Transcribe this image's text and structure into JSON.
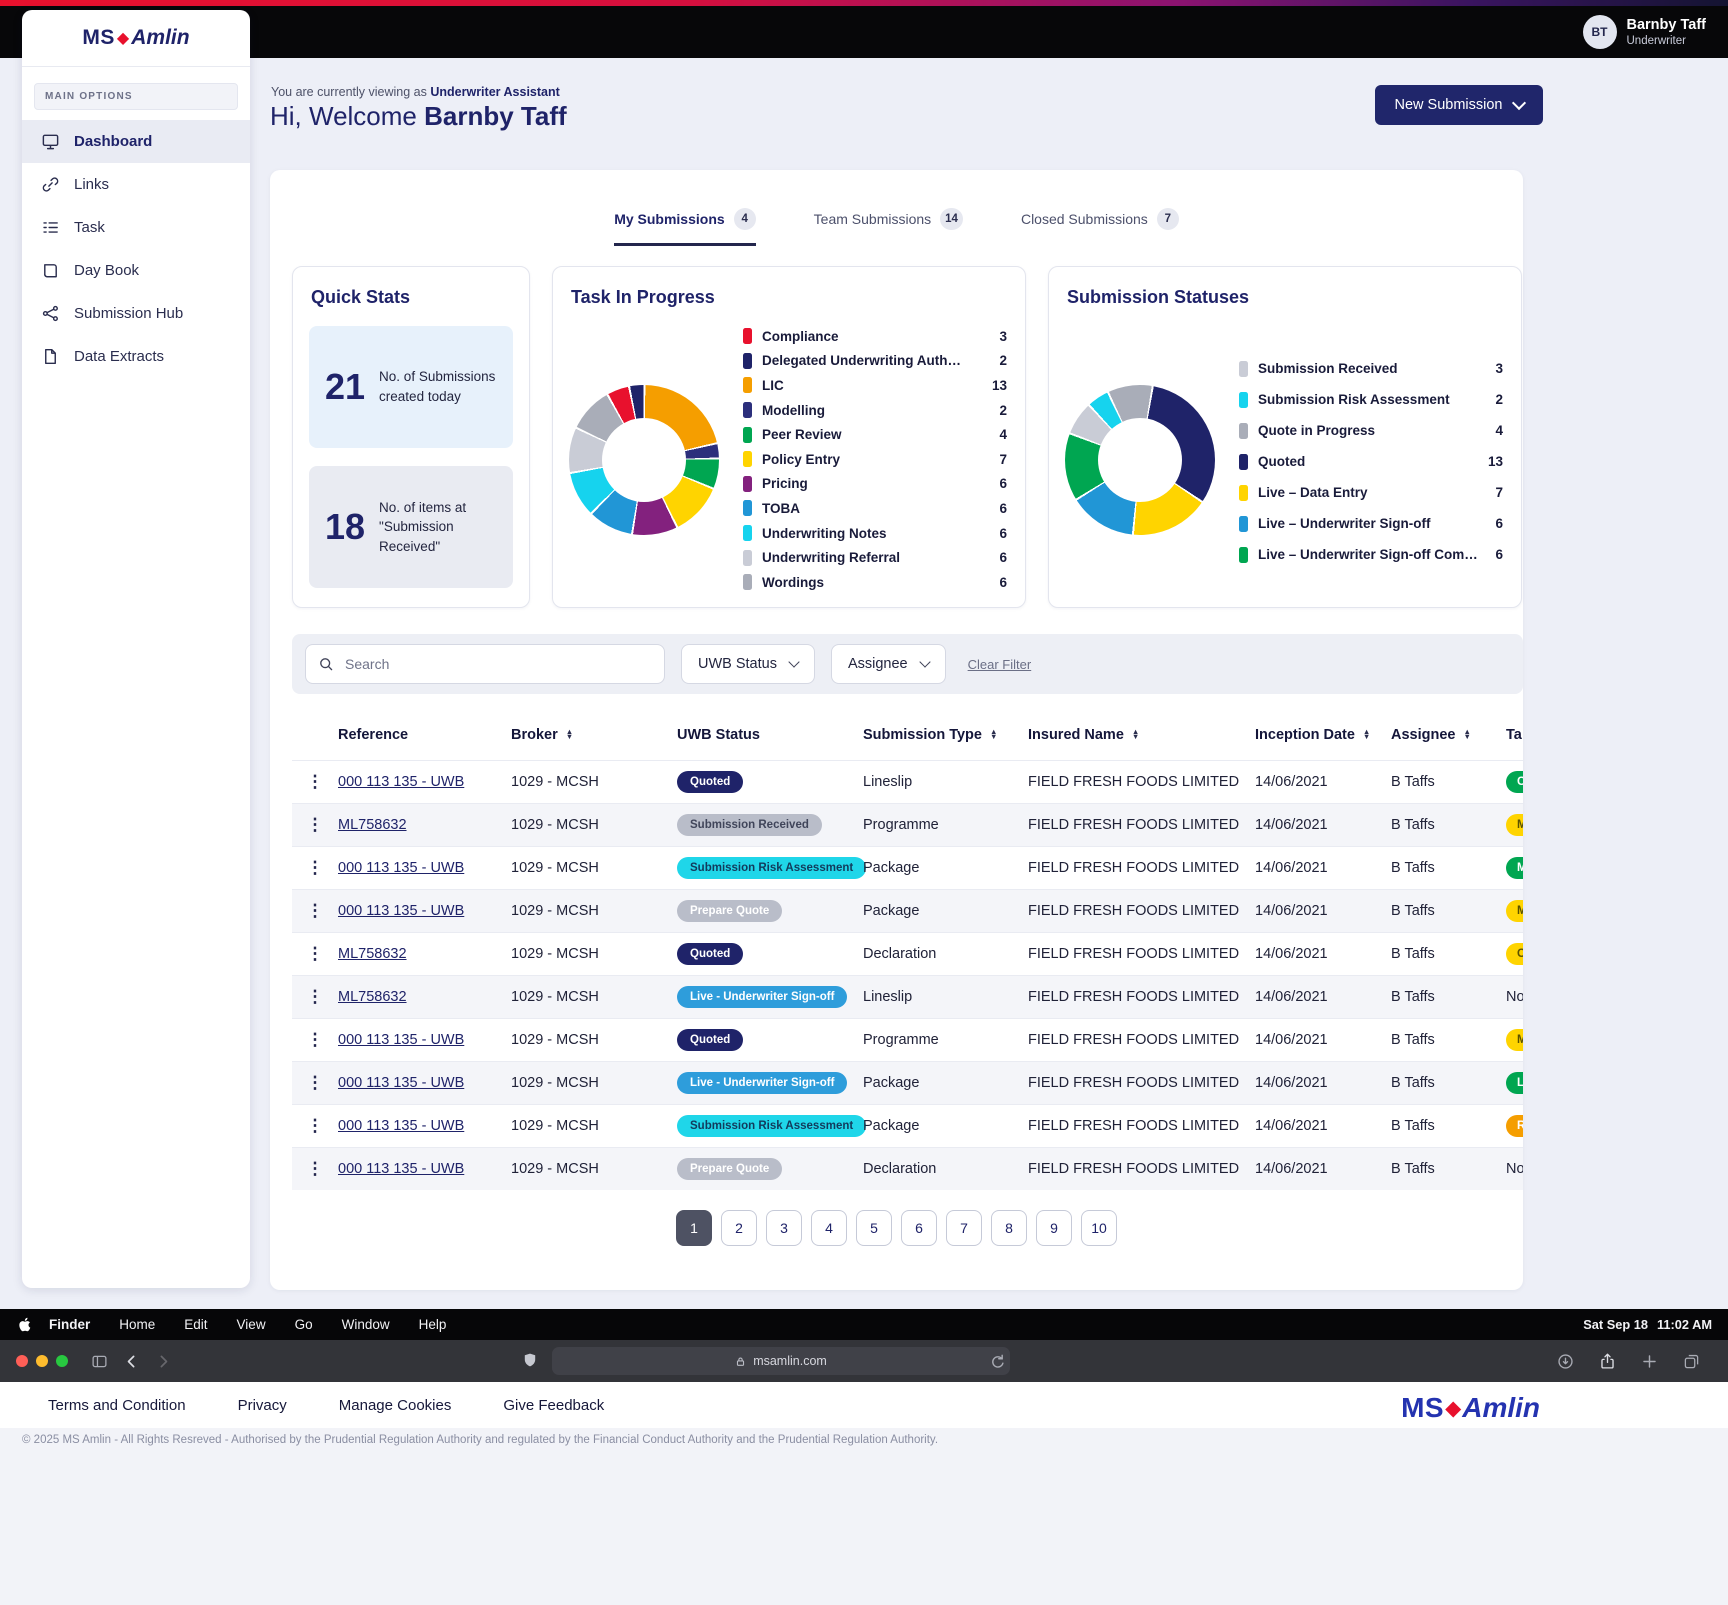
{
  "brand": {
    "ms": "MS",
    "diamond": "◆",
    "amlin": "Amlin",
    "accent_red": "#e8112d",
    "navy": "#1f2369"
  },
  "header": {
    "initials": "BT",
    "name": "Barnby Taff",
    "role": "Underwriter"
  },
  "sidebar": {
    "section_label": "MAIN OPTIONS",
    "items": [
      {
        "label": "Dashboard",
        "icon": "monitor-icon",
        "active": true
      },
      {
        "label": "Links",
        "icon": "link-icon",
        "active": false
      },
      {
        "label": "Task",
        "icon": "task-icon",
        "active": false
      },
      {
        "label": "Day Book",
        "icon": "book-icon",
        "active": false
      },
      {
        "label": "Submission Hub",
        "icon": "hub-icon",
        "active": false
      },
      {
        "label": "Data Extracts",
        "icon": "document-icon",
        "active": false
      }
    ]
  },
  "page": {
    "viewing_prefix": "You are currently viewing as",
    "viewing_role": "Underwriter Assistant",
    "welcome_prefix": "Hi, Welcome",
    "welcome_name": "Barnby Taff",
    "new_submission": "New Submission"
  },
  "tabs": [
    {
      "label": "My Submissions",
      "count": 4,
      "active": true
    },
    {
      "label": "Team Submissions",
      "count": 14,
      "active": false
    },
    {
      "label": "Closed Submissions",
      "count": 7,
      "active": false
    }
  ],
  "quick_stats": {
    "title": "Quick Stats",
    "items": [
      {
        "value": "21",
        "label": "No. of Submissions created today",
        "bg": "#e7f1fb"
      },
      {
        "value": "18",
        "label": "No. of items at \"Submission Received\"",
        "bg": "#e9ebf2"
      }
    ]
  },
  "chart_data": [
    {
      "type": "pie",
      "variant": "donut",
      "title": "Task In Progress",
      "legend_position": "right",
      "start_deg": -30,
      "segments": [
        {
          "label": "Compliance",
          "value": 3,
          "color": "#e8112d"
        },
        {
          "label": "Delegated Underwriting Auth…",
          "value": 2,
          "color": "#1f2369"
        },
        {
          "label": "LIC",
          "value": 13,
          "color": "#f59e00"
        },
        {
          "label": "Modelling",
          "value": 2,
          "color": "#2c2f7c"
        },
        {
          "label": "Peer Review",
          "value": 4,
          "color": "#00a651"
        },
        {
          "label": "Policy Entry",
          "value": 7,
          "color": "#ffd400"
        },
        {
          "label": "Pricing",
          "value": 6,
          "color": "#83217e"
        },
        {
          "label": "TOBA",
          "value": 6,
          "color": "#2196d6"
        },
        {
          "label": "Underwriting Notes",
          "value": 6,
          "color": "#16d3ee"
        },
        {
          "label": "Underwriting Referral",
          "value": 6,
          "color": "#c9ccd6"
        },
        {
          "label": "Wordings",
          "value": 6,
          "color": "#a9adb8"
        }
      ]
    },
    {
      "type": "pie",
      "variant": "donut",
      "title": "Submission Statuses",
      "legend_position": "right",
      "start_deg": -70,
      "segments": [
        {
          "label": "Submission Received",
          "value": 3,
          "color": "#c9ccd6"
        },
        {
          "label": "Submission Risk Assessment",
          "value": 2,
          "color": "#16d3ee"
        },
        {
          "label": "Quote in Progress",
          "value": 4,
          "color": "#a9adb8"
        },
        {
          "label": "Quoted",
          "value": 13,
          "color": "#1f2369"
        },
        {
          "label": "Live – Data Entry",
          "value": 7,
          "color": "#ffd400"
        },
        {
          "label": "Live – Underwriter Sign-off",
          "value": 6,
          "color": "#2196d6"
        },
        {
          "label": "Live – Underwriter Sign-off Compl…",
          "value": 6,
          "color": "#00a651"
        }
      ]
    }
  ],
  "filters": {
    "search_placeholder": "Search",
    "dropdowns": [
      "UWB Status",
      "Assignee"
    ],
    "clear": "Clear Filter"
  },
  "status_styles": {
    "Quoted": {
      "bg": "#1f2369",
      "fg": "#ffffff"
    },
    "Submission Received": {
      "bg": "#b9bdc9",
      "fg": "#40455a"
    },
    "Submission Risk Assessment": {
      "bg": "#1fd6e9",
      "fg": "#123b5c"
    },
    "Prepare Quote": {
      "bg": "#b9bdc9",
      "fg": "#ffffff"
    },
    "Live - Underwriter Sign-off": {
      "bg": "#2e9ddb",
      "fg": "#ffffff"
    }
  },
  "table": {
    "columns": [
      {
        "label": "Reference",
        "sortable": false
      },
      {
        "label": "Broker",
        "sortable": true
      },
      {
        "label": "UWB Status",
        "sortable": false
      },
      {
        "label": "Submission Type",
        "sortable": true
      },
      {
        "label": "Insured Name",
        "sortable": true
      },
      {
        "label": "Inception Date",
        "sortable": true
      },
      {
        "label": "Assignee",
        "sortable": true
      },
      {
        "label": "Ta",
        "sortable": true
      }
    ],
    "rows": [
      {
        "reference": "000 113 135 - UWB",
        "broker": "1029 - MCSH",
        "uwb_status": "Quoted",
        "type": "Lineslip",
        "insured": "FIELD FRESH FOODS LIMITED",
        "date": "14/06/2021",
        "assignee": "B Taffs",
        "task": {
          "kind": "pill",
          "color": "#00a651",
          "fg": "#ffffff",
          "text": "C"
        }
      },
      {
        "reference": "ML758632",
        "broker": "1029 - MCSH",
        "uwb_status": "Submission Received",
        "type": "Programme",
        "insured": "FIELD FRESH FOODS LIMITED",
        "date": "14/06/2021",
        "assignee": "B Taffs",
        "task": {
          "kind": "pill",
          "color": "#ffd400",
          "fg": "#5a5200",
          "text": "M"
        }
      },
      {
        "reference": "000 113 135 - UWB",
        "broker": "1029 - MCSH",
        "uwb_status": "Submission Risk Assessment",
        "type": "Package",
        "insured": "FIELD FRESH FOODS LIMITED",
        "date": "14/06/2021",
        "assignee": "B Taffs",
        "task": {
          "kind": "pill",
          "color": "#00a651",
          "fg": "#ffffff",
          "text": "M"
        }
      },
      {
        "reference": "000 113 135 - UWB",
        "broker": "1029 - MCSH",
        "uwb_status": "Prepare Quote",
        "type": "Package",
        "insured": "FIELD FRESH FOODS LIMITED",
        "date": "14/06/2021",
        "assignee": "B Taffs",
        "task": {
          "kind": "pill",
          "color": "#ffd400",
          "fg": "#5a5200",
          "text": "M"
        }
      },
      {
        "reference": "ML758632",
        "broker": "1029 - MCSH",
        "uwb_status": "Quoted",
        "type": "Declaration",
        "insured": "FIELD FRESH FOODS LIMITED",
        "date": "14/06/2021",
        "assignee": "B Taffs",
        "task": {
          "kind": "pill",
          "color": "#ffd400",
          "fg": "#5a5200",
          "text": "C"
        }
      },
      {
        "reference": "ML758632",
        "broker": "1029 - MCSH",
        "uwb_status": "Live - Underwriter Sign-off",
        "type": "Lineslip",
        "insured": "FIELD FRESH FOODS LIMITED",
        "date": "14/06/2021",
        "assignee": "B Taffs",
        "task": {
          "kind": "text",
          "text": "No"
        }
      },
      {
        "reference": "000 113 135 - UWB",
        "broker": "1029 - MCSH",
        "uwb_status": "Quoted",
        "type": "Programme",
        "insured": "FIELD FRESH FOODS LIMITED",
        "date": "14/06/2021",
        "assignee": "B Taffs",
        "task": {
          "kind": "pill",
          "color": "#ffd400",
          "fg": "#5a5200",
          "text": "M"
        }
      },
      {
        "reference": "000 113 135 - UWB",
        "broker": "1029 - MCSH",
        "uwb_status": "Live - Underwriter Sign-off",
        "type": "Package",
        "insured": "FIELD FRESH FOODS LIMITED",
        "date": "14/06/2021",
        "assignee": "B Taffs",
        "task": {
          "kind": "pill",
          "color": "#00a651",
          "fg": "#ffffff",
          "text": "L"
        }
      },
      {
        "reference": "000 113 135 - UWB",
        "broker": "1029 - MCSH",
        "uwb_status": "Submission Risk Assessment",
        "type": "Package",
        "insured": "FIELD FRESH FOODS LIMITED",
        "date": "14/06/2021",
        "assignee": "B Taffs",
        "task": {
          "kind": "pill",
          "color": "#f59e00",
          "fg": "#ffffff",
          "text": "R"
        }
      },
      {
        "reference": "000 113 135 - UWB",
        "broker": "1029 - MCSH",
        "uwb_status": "Prepare Quote",
        "type": "Declaration",
        "insured": "FIELD FRESH FOODS LIMITED",
        "date": "14/06/2021",
        "assignee": "B Taffs",
        "task": {
          "kind": "text",
          "text": "No"
        }
      }
    ]
  },
  "pagination": {
    "pages": [
      "1",
      "2",
      "3",
      "4",
      "5",
      "6",
      "7",
      "8",
      "9",
      "10"
    ],
    "active": "1"
  },
  "menubar": {
    "items": [
      "Finder",
      "Home",
      "Edit",
      "View",
      "Go",
      "Window",
      "Help"
    ],
    "clock_date": "Sat Sep 18",
    "clock_time": "11:02 AM"
  },
  "browser": {
    "url": "msamlin.com"
  },
  "footer": {
    "links": [
      "Terms and Condition",
      "Privacy",
      "Manage Cookies",
      "Give Feedback"
    ],
    "logo_ms": "MS",
    "logo_diamond": "◆",
    "logo_amlin": "Amlin",
    "copyright": "© 2025 MS Amlin - All Rights Resreved - Authorised by the Prudential Regulation Authority and regulated by the Financial Conduct Authority and the Prudential Regulation Authority."
  }
}
